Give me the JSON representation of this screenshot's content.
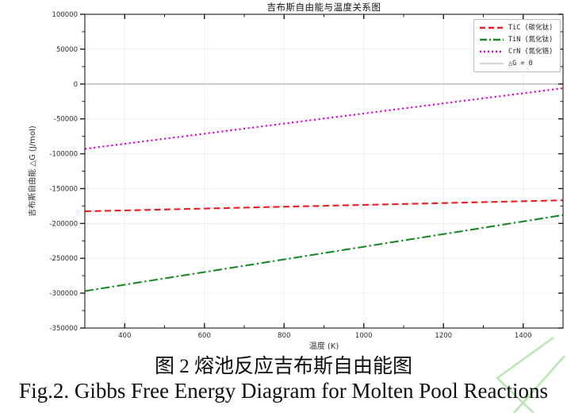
{
  "figure": {
    "caption_cn": "图 2 熔池反应吉布斯自由能图",
    "caption_en": "Fig.2. Gibbs Free Energy Diagram for Molten Pool Reactions"
  },
  "chart_data": {
    "type": "line",
    "title": "吉布斯自由能与温度关系图",
    "xlabel": "温度 (K)",
    "ylabel": "吉布斯自由能 △G (J/mol)",
    "xlim": [
      300,
      1500
    ],
    "ylim": [
      -350000,
      100000
    ],
    "x_major_ticks": [
      400,
      600,
      800,
      1000,
      1200,
      1400
    ],
    "x_minor_step": 100,
    "y_major_ticks": [
      100000,
      50000,
      0,
      -50000,
      -100000,
      -150000,
      -200000,
      -250000,
      -300000,
      -350000
    ],
    "y_minor_step": 25000,
    "grid": true,
    "legend_position": "upper right",
    "x": [
      300,
      400,
      500,
      600,
      700,
      800,
      900,
      1000,
      1100,
      1200,
      1300,
      1400,
      1500
    ],
    "series": [
      {
        "name": "TiC (碳化钛)",
        "color": "#ee1c22",
        "style": "dashed",
        "values": [
          -182600,
          -181300,
          -180000,
          -178700,
          -177300,
          -176000,
          -174700,
          -173400,
          -172100,
          -170800,
          -169400,
          -168100,
          -166800
        ]
      },
      {
        "name": "TiN (氮化钛)",
        "color": "#1a8a28",
        "style": "dashdot",
        "values": [
          -297000,
          -287900,
          -278800,
          -269800,
          -260700,
          -251600,
          -242500,
          -233400,
          -224300,
          -215300,
          -206200,
          -197100,
          -188000
        ]
      },
      {
        "name": "CrN (氮化铬)",
        "color": "#d400d8",
        "style": "dotted",
        "values": [
          -93000,
          -85800,
          -78500,
          -71300,
          -64000,
          -56800,
          -49500,
          -42300,
          -35000,
          -27800,
          -20500,
          -13300,
          -6000
        ]
      },
      {
        "name": "△G = 0",
        "color": "#a9a9a9",
        "style": "solid",
        "values": [
          0,
          0,
          0,
          0,
          0,
          0,
          0,
          0,
          0,
          0,
          0,
          0,
          0
        ]
      }
    ],
    "colors": {
      "grid": "#ececec",
      "axis": "#1c1c1c",
      "tick_label": "#2b2b2b"
    }
  },
  "watermark": {
    "color": "#b7e7b0"
  }
}
